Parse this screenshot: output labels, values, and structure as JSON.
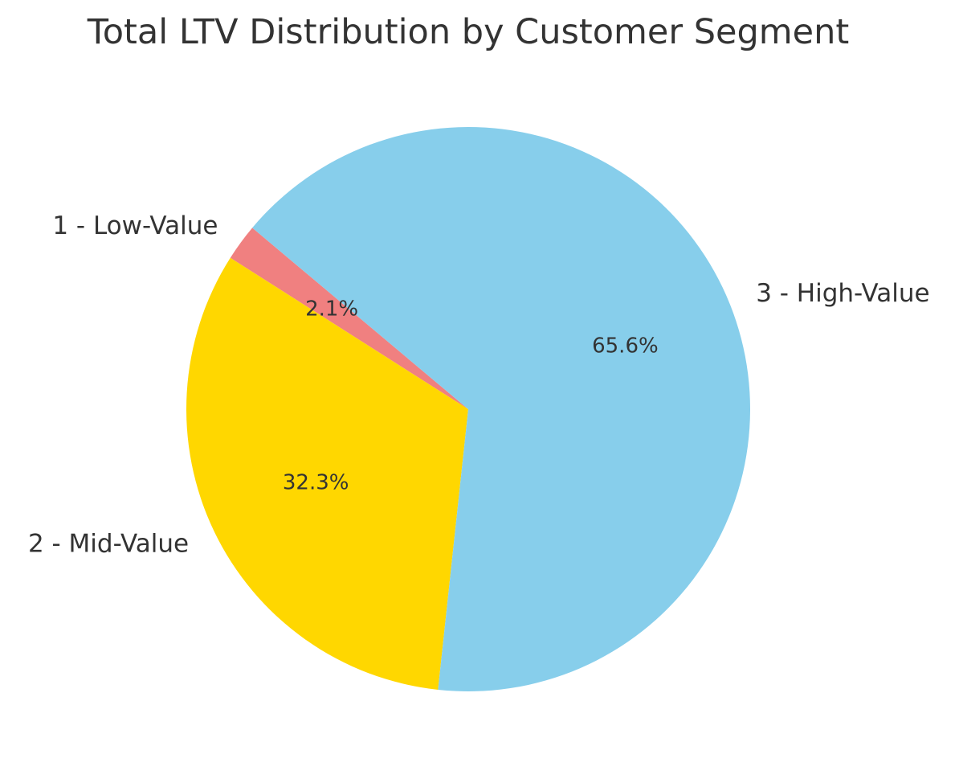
{
  "chart_data": {
    "type": "pie",
    "title": "Total LTV Distribution by Customer Segment",
    "start_angle_deg": 140,
    "direction": "counterclockwise",
    "slices": [
      {
        "label": "1 - Low-Value",
        "value": 2.1,
        "pct_label": "2.1%",
        "color": "#F08080"
      },
      {
        "label": "2 - Mid-Value",
        "value": 32.3,
        "pct_label": "32.3%",
        "color": "#FFD700"
      },
      {
        "label": "3 - High-Value",
        "value": 65.6,
        "pct_label": "65.6%",
        "color": "#87CEEB"
      }
    ]
  }
}
